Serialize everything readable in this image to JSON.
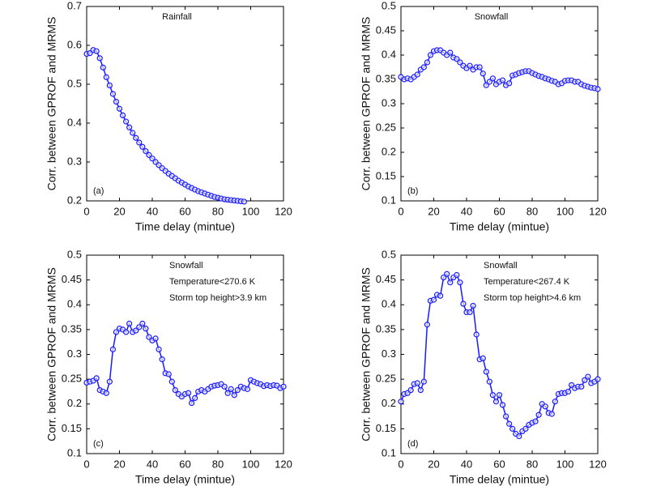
{
  "chart_data": [
    {
      "type": "line",
      "xlabel": "Time delay (mintue)",
      "ylabel": "Corr. between GPROF and MRMS",
      "panel_label": "(a)",
      "annotations": [
        "Rainfall"
      ],
      "x": [
        0,
        2,
        4,
        6,
        8,
        10,
        12,
        14,
        16,
        18,
        20,
        22,
        24,
        26,
        28,
        30,
        32,
        34,
        36,
        38,
        40,
        42,
        44,
        46,
        48,
        50,
        52,
        54,
        56,
        58,
        60,
        62,
        64,
        66,
        68,
        70,
        72,
        74,
        76,
        78,
        80,
        82,
        84,
        86,
        88,
        90,
        92,
        94,
        96
      ],
      "series": [
        {
          "color": "#1a1aff",
          "values": [
            0.578,
            0.58,
            0.588,
            0.585,
            0.567,
            0.543,
            0.518,
            0.497,
            0.475,
            0.455,
            0.437,
            0.42,
            0.404,
            0.389,
            0.375,
            0.362,
            0.35,
            0.339,
            0.328,
            0.318,
            0.309,
            0.3,
            0.292,
            0.284,
            0.277,
            0.27,
            0.264,
            0.258,
            0.252,
            0.247,
            0.242,
            0.237,
            0.233,
            0.229,
            0.225,
            0.222,
            0.219,
            0.216,
            0.213,
            0.21,
            0.208,
            0.206,
            0.204,
            0.203,
            0.202,
            0.201,
            0.2,
            0.199,
            0.198
          ]
        }
      ],
      "xlim": [
        0,
        120
      ],
      "xticks": [
        0,
        20,
        40,
        60,
        80,
        100,
        120
      ],
      "ylim": [
        0.2,
        0.7
      ],
      "yticks": [
        0.2,
        0.3,
        0.4,
        0.5,
        0.6,
        0.7
      ]
    },
    {
      "type": "line",
      "xlabel": "Time delay (mintue)",
      "ylabel": "Corr. between GPROF and MRMS",
      "panel_label": "(b)",
      "annotations": [
        "Snowfall"
      ],
      "x": [
        0,
        2,
        4,
        6,
        8,
        10,
        12,
        14,
        16,
        18,
        20,
        22,
        24,
        26,
        28,
        30,
        32,
        34,
        36,
        38,
        40,
        42,
        44,
        46,
        48,
        50,
        52,
        54,
        56,
        58,
        60,
        62,
        64,
        66,
        68,
        70,
        72,
        74,
        76,
        78,
        80,
        82,
        84,
        86,
        88,
        90,
        92,
        94,
        96,
        98,
        100,
        102,
        104,
        106,
        108,
        110,
        112,
        114,
        116,
        118,
        120
      ],
      "series": [
        {
          "color": "#1a1aff",
          "values": [
            0.355,
            0.35,
            0.352,
            0.35,
            0.355,
            0.36,
            0.37,
            0.375,
            0.385,
            0.4,
            0.408,
            0.41,
            0.41,
            0.405,
            0.4,
            0.405,
            0.395,
            0.392,
            0.385,
            0.378,
            0.373,
            0.378,
            0.37,
            0.375,
            0.375,
            0.362,
            0.338,
            0.345,
            0.352,
            0.34,
            0.345,
            0.348,
            0.338,
            0.342,
            0.358,
            0.36,
            0.363,
            0.365,
            0.367,
            0.367,
            0.363,
            0.36,
            0.357,
            0.355,
            0.352,
            0.35,
            0.347,
            0.345,
            0.34,
            0.342,
            0.347,
            0.348,
            0.348,
            0.345,
            0.345,
            0.34,
            0.337,
            0.335,
            0.333,
            0.332,
            0.33
          ]
        }
      ],
      "xlim": [
        0,
        120
      ],
      "xticks": [
        0,
        20,
        40,
        60,
        80,
        100,
        120
      ],
      "ylim": [
        0.1,
        0.5
      ],
      "yticks": [
        0.1,
        0.15,
        0.2,
        0.25,
        0.3,
        0.35,
        0.4,
        0.45,
        0.5
      ]
    },
    {
      "type": "line",
      "xlabel": "Time delay (mintue)",
      "ylabel": "Corr. between GPROF and MRMS",
      "panel_label": "(c)",
      "annotations": [
        "Snowfall",
        "Temperature<270.6 K",
        "Storm top height>3.9 km"
      ],
      "x": [
        0,
        2,
        4,
        6,
        8,
        10,
        12,
        14,
        16,
        18,
        20,
        22,
        24,
        26,
        28,
        30,
        32,
        34,
        36,
        38,
        40,
        42,
        44,
        46,
        48,
        50,
        52,
        54,
        56,
        58,
        60,
        62,
        64,
        66,
        68,
        70,
        72,
        74,
        76,
        78,
        80,
        82,
        84,
        86,
        88,
        90,
        92,
        94,
        96,
        98,
        100,
        102,
        104,
        106,
        108,
        110,
        112,
        114,
        116,
        118,
        120
      ],
      "series": [
        {
          "color": "#1a1aff",
          "values": [
            0.243,
            0.245,
            0.247,
            0.252,
            0.228,
            0.225,
            0.222,
            0.245,
            0.31,
            0.345,
            0.352,
            0.35,
            0.345,
            0.362,
            0.345,
            0.348,
            0.355,
            0.362,
            0.352,
            0.335,
            0.328,
            0.332,
            0.31,
            0.29,
            0.262,
            0.26,
            0.245,
            0.228,
            0.22,
            0.215,
            0.22,
            0.222,
            0.202,
            0.212,
            0.225,
            0.228,
            0.225,
            0.23,
            0.235,
            0.237,
            0.238,
            0.24,
            0.235,
            0.222,
            0.23,
            0.218,
            0.228,
            0.235,
            0.232,
            0.23,
            0.248,
            0.245,
            0.242,
            0.24,
            0.236,
            0.238,
            0.236,
            0.238,
            0.237,
            0.232,
            0.235
          ]
        }
      ],
      "xlim": [
        0,
        120
      ],
      "xticks": [
        0,
        20,
        40,
        60,
        80,
        100,
        120
      ],
      "ylim": [
        0.1,
        0.5
      ],
      "yticks": [
        0.1,
        0.15,
        0.2,
        0.25,
        0.3,
        0.35,
        0.4,
        0.45,
        0.5
      ]
    },
    {
      "type": "line",
      "xlabel": "Time delay (mintue)",
      "ylabel": "Corr. between GPROF and MRMS",
      "panel_label": "(d)",
      "annotations": [
        "Snowfall",
        "Temperature<267.4 K",
        "Storm top height>4.6 km"
      ],
      "x": [
        0,
        2,
        4,
        6,
        8,
        10,
        12,
        14,
        16,
        18,
        20,
        22,
        24,
        26,
        28,
        30,
        32,
        34,
        36,
        38,
        40,
        42,
        44,
        46,
        48,
        50,
        52,
        54,
        56,
        58,
        60,
        62,
        64,
        66,
        68,
        70,
        72,
        74,
        76,
        78,
        80,
        82,
        84,
        86,
        88,
        90,
        92,
        94,
        96,
        98,
        100,
        102,
        104,
        106,
        108,
        110,
        112,
        114,
        116,
        118,
        120
      ],
      "series": [
        {
          "color": "#1a1aff",
          "values": [
            0.205,
            0.22,
            0.222,
            0.228,
            0.24,
            0.242,
            0.228,
            0.245,
            0.36,
            0.408,
            0.41,
            0.42,
            0.418,
            0.455,
            0.462,
            0.445,
            0.455,
            0.46,
            0.445,
            0.402,
            0.385,
            0.385,
            0.398,
            0.34,
            0.29,
            0.292,
            0.265,
            0.245,
            0.218,
            0.205,
            0.218,
            0.198,
            0.175,
            0.16,
            0.15,
            0.14,
            0.135,
            0.145,
            0.15,
            0.158,
            0.162,
            0.165,
            0.178,
            0.2,
            0.195,
            0.182,
            0.18,
            0.205,
            0.22,
            0.222,
            0.222,
            0.225,
            0.238,
            0.232,
            0.235,
            0.235,
            0.248,
            0.255,
            0.242,
            0.245,
            0.25
          ]
        }
      ],
      "xlim": [
        0,
        120
      ],
      "xticks": [
        0,
        20,
        40,
        60,
        80,
        100,
        120
      ],
      "ylim": [
        0.1,
        0.5
      ],
      "yticks": [
        0.1,
        0.15,
        0.2,
        0.25,
        0.3,
        0.35,
        0.4,
        0.45,
        0.5
      ]
    }
  ]
}
